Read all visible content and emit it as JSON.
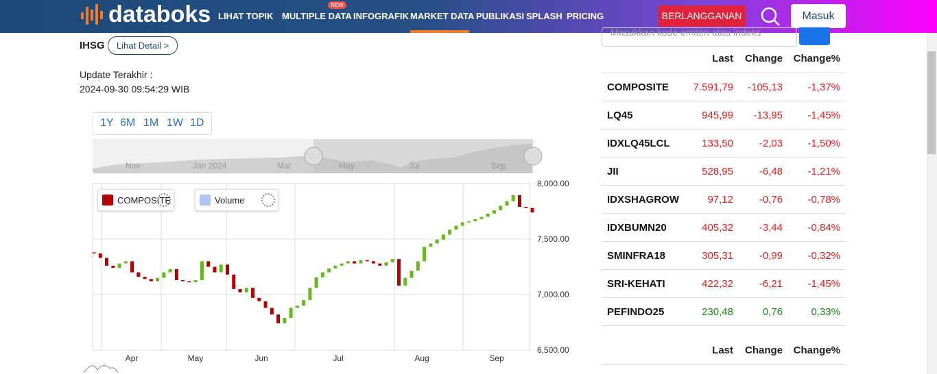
{
  "nav": {
    "logo": "databoks",
    "menu": [
      "LIHAT TOPIK",
      "MULTIPLE DATA",
      "INFOGRAFIK",
      "MARKET DATA",
      "PUBLIKASI",
      "SPLASH",
      "PRICING"
    ],
    "badge": "NEW",
    "subscribe": "BERLANGGANAN",
    "login": "Masuk"
  },
  "search": {
    "placeholder": "Masukkan kode emiten atau indeks"
  },
  "info": {
    "index": "IHSG",
    "detail": "Lihat Detail >",
    "update_label": "Update Terakhir :",
    "update_time": "2024-09-30 09:54:29 WIB"
  },
  "ranges": [
    "1Y",
    "6M",
    "1M",
    "1W",
    "1D"
  ],
  "navigator": {
    "labels": [
      "Nov",
      "Jan 2024",
      "Mar",
      "May",
      "Jul",
      "Sep"
    ]
  },
  "chart_data": {
    "type": "candlestick",
    "legend": [
      "COMPOSITE",
      "Volume"
    ],
    "x_labels": [
      "Apr",
      "May",
      "Jun",
      "Jul",
      "Aug",
      "Sep"
    ],
    "ylim": [
      6500,
      8000
    ],
    "yticks": [
      {
        "value": 6500,
        "label": "6,500.00"
      },
      {
        "value": 7000,
        "label": "7,000.00"
      },
      {
        "value": 7500,
        "label": "7,500.00"
      },
      {
        "value": 8000,
        "label": "8,000.00"
      }
    ],
    "up_color": "#6ab820",
    "down_color": "#b30000",
    "open": [
      7380,
      7370,
      7330,
      7260,
      7240,
      7280,
      7300,
      7200,
      7160,
      7140,
      7120,
      7150,
      7200,
      7230,
      7130,
      7120,
      7110,
      7130,
      7300,
      7250,
      7200,
      7270,
      7180,
      7050,
      7020,
      7060,
      6970,
      6940,
      6880,
      6820,
      6740,
      6790,
      6880,
      6900,
      6950,
      7060,
      7155,
      7200,
      7235,
      7260,
      7280,
      7300,
      7280,
      7310,
      7300,
      7280,
      7260,
      7290,
      7320,
      7080,
      7150,
      7215,
      7300,
      7430,
      7460,
      7495,
      7540,
      7585,
      7620,
      7650,
      7660,
      7680,
      7700,
      7730,
      7760,
      7800,
      7840,
      7895,
      7790,
      7780
    ],
    "close": [
      7370,
      7330,
      7260,
      7240,
      7280,
      7300,
      7200,
      7160,
      7140,
      7120,
      7150,
      7200,
      7230,
      7130,
      7120,
      7110,
      7130,
      7300,
      7250,
      7200,
      7270,
      7180,
      7050,
      7020,
      7060,
      6970,
      6940,
      6880,
      6820,
      6740,
      6790,
      6880,
      6900,
      6950,
      7060,
      7155,
      7200,
      7235,
      7260,
      7280,
      7300,
      7280,
      7310,
      7300,
      7280,
      7260,
      7290,
      7320,
      7080,
      7150,
      7215,
      7300,
      7430,
      7460,
      7495,
      7540,
      7585,
      7620,
      7650,
      7660,
      7680,
      7700,
      7730,
      7760,
      7800,
      7840,
      7895,
      7790,
      7780,
      7740
    ]
  },
  "table": {
    "header": [
      "Last",
      "Change",
      "Change%"
    ],
    "rows": [
      [
        "COMPOSITE",
        "7.591,79",
        "-105,13",
        "-1,37%"
      ],
      [
        "LQ45",
        "945,99",
        "-13,95",
        "-1,45%"
      ],
      [
        "IDXLQ45LCL",
        "133,50",
        "-2,03",
        "-1,50%"
      ],
      [
        "JII",
        "528,95",
        "-6,48",
        "-1,21%"
      ],
      [
        "IDXSHAGROW",
        "97,12",
        "-0,76",
        "-0,78%"
      ],
      [
        "IDXBUMN20",
        "405,32",
        "-3,44",
        "-0,84%"
      ],
      [
        "SMINFRA18",
        "305,31",
        "-0,99",
        "-0,32%"
      ],
      [
        "SRI-KEHATI",
        "422,32",
        "-6,21",
        "-1,45%"
      ],
      [
        "PEFINDO25",
        "230,48",
        "0,76",
        "0,33%"
      ]
    ],
    "row_colors": [
      "#e02020",
      "#e02020",
      "#e02020",
      "#e02020",
      "#e02020",
      "#e02020",
      "#e02020",
      "#e02020",
      "#1a8a1a"
    ]
  },
  "table2": {
    "header": [
      "Last",
      "Change",
      "Change%"
    ]
  }
}
